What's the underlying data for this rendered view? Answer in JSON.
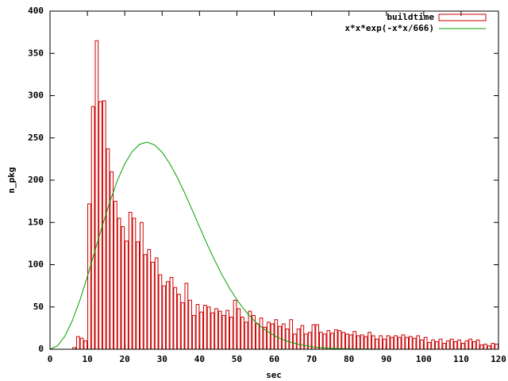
{
  "chart_data": {
    "type": "histogram",
    "xlabel": "sec",
    "ylabel": "n_pkg",
    "xlim": [
      0,
      120
    ],
    "ylim": [
      0,
      400
    ],
    "xticks": [
      0,
      10,
      20,
      30,
      40,
      50,
      60,
      70,
      80,
      90,
      100,
      110,
      120
    ],
    "yticks": [
      0,
      50,
      100,
      150,
      200,
      250,
      300,
      350,
      400
    ],
    "legend": "top-right",
    "bins": [
      6,
      7,
      8,
      9,
      10,
      11,
      12,
      13,
      14,
      15,
      16,
      17,
      18,
      19,
      20,
      21,
      22,
      23,
      24,
      25,
      26,
      27,
      28,
      29,
      30,
      31,
      32,
      33,
      34,
      35,
      36,
      37,
      38,
      39,
      40,
      41,
      42,
      43,
      44,
      45,
      46,
      47,
      48,
      49,
      50,
      51,
      52,
      53,
      54,
      55,
      56,
      57,
      58,
      59,
      60,
      61,
      62,
      63,
      64,
      65,
      66,
      67,
      68,
      69,
      70,
      71,
      72,
      73,
      74,
      75,
      76,
      77,
      78,
      79,
      80,
      81,
      82,
      83,
      84,
      85,
      86,
      87,
      88,
      89,
      90,
      91,
      92,
      93,
      94,
      95,
      96,
      97,
      98,
      99,
      100,
      101,
      102,
      103,
      104,
      105,
      106,
      107,
      108,
      109,
      110,
      111,
      112,
      113,
      114,
      115,
      116,
      117,
      118,
      119,
      120
    ],
    "series": [
      {
        "name": "buildtime",
        "type": "histogram",
        "color": "#cc0000",
        "values": [
          2,
          15,
          13,
          10,
          172,
          287,
          365,
          293,
          294,
          237,
          210,
          175,
          155,
          145,
          128,
          162,
          155,
          127,
          150,
          112,
          118,
          103,
          108,
          88,
          75,
          80,
          85,
          73,
          65,
          55,
          78,
          58,
          40,
          53,
          44,
          52,
          50,
          43,
          48,
          45,
          40,
          46,
          38,
          58,
          48,
          38,
          32,
          45,
          40,
          30,
          37,
          26,
          32,
          30,
          35,
          27,
          30,
          24,
          35,
          18,
          24,
          28,
          18,
          20,
          29,
          29,
          20,
          18,
          22,
          19,
          23,
          22,
          20,
          18,
          17,
          21,
          16,
          17,
          15,
          20,
          16,
          12,
          16,
          12,
          16,
          14,
          16,
          14,
          17,
          14,
          15,
          13,
          16,
          11,
          14,
          8,
          11,
          9,
          12,
          7,
          10,
          12,
          9,
          11,
          7,
          10,
          12,
          9,
          11,
          5,
          6,
          4,
          7,
          6
        ]
      },
      {
        "name": "x*x*exp(-x*x/666)",
        "type": "line",
        "color": "#00a000",
        "x": [
          0,
          2,
          4,
          6,
          8,
          10,
          12,
          14,
          16,
          18,
          20,
          22,
          24,
          26,
          28,
          30,
          32,
          34,
          36,
          38,
          40,
          42,
          44,
          46,
          48,
          50,
          52,
          54,
          56,
          58,
          60,
          62,
          64,
          66,
          68,
          70,
          72,
          74,
          76,
          78,
          80,
          90,
          100,
          110,
          120
        ],
        "values": [
          0,
          3.98,
          15.62,
          34.1,
          58.1,
          86.1,
          116.0,
          146.0,
          174.3,
          199.3,
          219.3,
          234.0,
          242.5,
          245.0,
          241.6,
          233.0,
          220.0,
          203.8,
          185.2,
          165.2,
          144.8,
          124.7,
          105.8,
          88.2,
          72.5,
          58.6,
          46.7,
          36.6,
          28.3,
          21.5,
          16.2,
          11.9,
          8.8,
          6.3,
          4.5,
          3.1,
          2.1,
          1.5,
          1.0,
          0.65,
          0.43,
          0.04,
          0,
          0,
          0
        ]
      }
    ]
  }
}
